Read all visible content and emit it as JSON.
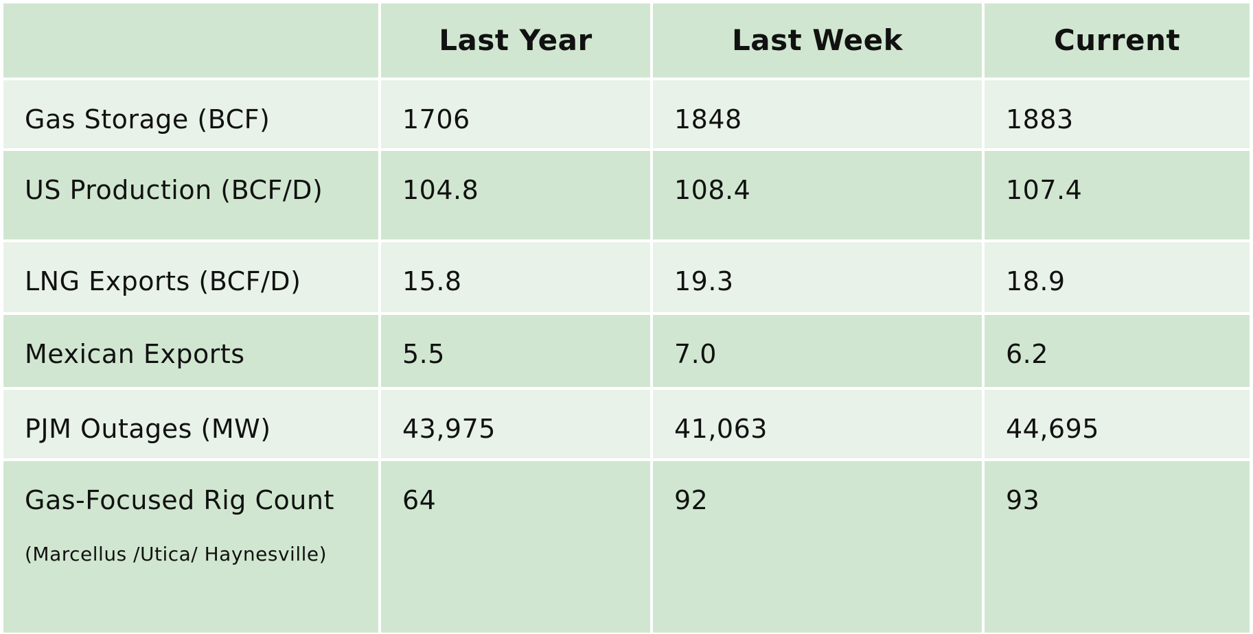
{
  "table": {
    "columns": [
      "Last Year",
      "Last Week",
      "Current"
    ],
    "rows": [
      {
        "label": "Gas Storage (BCF)",
        "values": [
          "1706",
          "1848",
          "1883"
        ]
      },
      {
        "label": "US Production (BCF/D)",
        "values": [
          "104.8",
          "108.4",
          "107.4"
        ]
      },
      {
        "label": "LNG Exports (BCF/D)",
        "values": [
          "15.8",
          "19.3",
          "18.9"
        ]
      },
      {
        "label": "Mexican Exports",
        "values": [
          "5.5",
          "7.0",
          "6.2"
        ]
      },
      {
        "label": "PJM Outages (MW)",
        "values": [
          "43,975",
          "41,063",
          "44,695"
        ]
      },
      {
        "label": "Gas-Focused Rig Count",
        "note": "(Marcellus /Utica/ Haynesville)",
        "values": [
          "64",
          "92",
          "93"
        ]
      }
    ]
  }
}
